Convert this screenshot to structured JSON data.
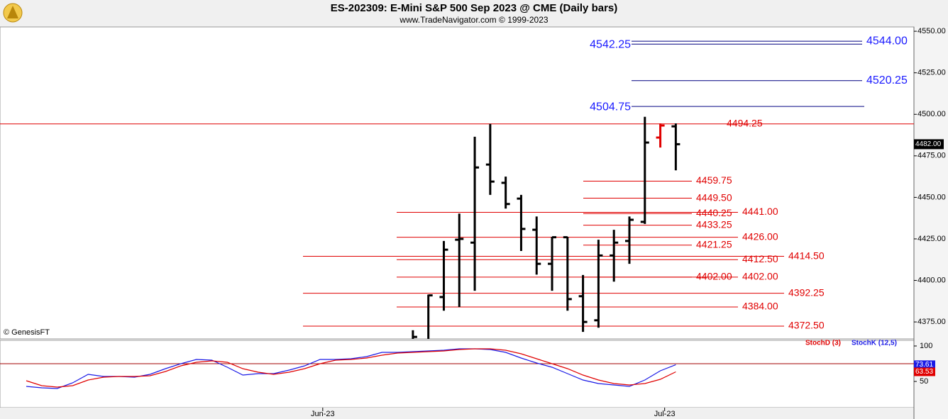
{
  "header": {
    "title": "ES-202309:  E-Mini S&P 500 Sep 2023 @ CME  (Daily bars)",
    "subtitle": "www.TradeNavigator.com © 1999-2023",
    "credit": "© GenesisFT"
  },
  "chart_data": [
    {
      "type": "ohlc",
      "x": [
        0,
        1,
        2,
        3,
        4,
        5,
        6,
        7,
        8,
        9,
        10,
        11,
        12,
        13,
        14,
        15,
        16,
        17
      ],
      "open": [
        4362,
        4362,
        4390,
        4424.5,
        4422.75,
        4469.75,
        4458.75,
        4449.25,
        4430.5,
        4410,
        4426,
        4390.5,
        4376,
        4415,
        4423.75,
        4435.25,
        4486,
        4492.75
      ],
      "high": [
        4370,
        4391.5,
        4423.75,
        4440.25,
        4486.5,
        4494.25,
        4462.5,
        4451.5,
        4438.5,
        4426.25,
        4426.25,
        4403.25,
        4424.5,
        4430.5,
        4438.5,
        4498.5,
        4494.5,
        4494.5
      ],
      "low": [
        4355,
        4360,
        4381.75,
        4384,
        4393.75,
        4451.5,
        4443.25,
        4417.75,
        4403.5,
        4393.75,
        4381.75,
        4369,
        4371.5,
        4399.25,
        4410,
        4434,
        4480,
        4466.25
      ],
      "close": [
        4366,
        4391,
        4418.5,
        4425,
        4468,
        4459.5,
        4446,
        4431,
        4410,
        4426,
        4388.75,
        4375,
        4415,
        4422.75,
        4436.5,
        4483,
        4493.25,
        4482
      ],
      "bar_colors": [
        "#000000",
        "#000000",
        "#000000",
        "#000000",
        "#000000",
        "#000000",
        "#000000",
        "#000000",
        "#000000",
        "#000000",
        "#000000",
        "#000000",
        "#000000",
        "#000000",
        "#000000",
        "#000000",
        "#e00000",
        "#000000"
      ],
      "last": {
        "value": 4482,
        "label": "4482.00"
      },
      "xlim": [
        -26.7,
        32.4
      ],
      "ylim": [
        4364.8,
        4552.6
      ],
      "yticks": [
        {
          "value": 4375,
          "label": "4375.00"
        },
        {
          "value": 4400,
          "label": "4400.00"
        },
        {
          "value": 4425,
          "label": "4425.00"
        },
        {
          "value": 4450,
          "label": "4450.00"
        },
        {
          "value": 4475,
          "label": "4475.00"
        },
        {
          "value": 4500,
          "label": "4500.00"
        },
        {
          "value": 4525,
          "label": "4525.00"
        },
        {
          "value": 4550,
          "label": "4550.00"
        }
      ],
      "levels": [
        {
          "value": 4544,
          "label": "4544.00",
          "color": "#1a1aff"
        },
        {
          "value": 4542.25,
          "label": "4542.25",
          "color": "#1a1aff"
        },
        {
          "value": 4520.25,
          "label": "4520.25",
          "color": "#1a1aff"
        },
        {
          "value": 4504.75,
          "label": "4504.75",
          "color": "#1a1aff"
        },
        {
          "value": 4494.25,
          "label": "4494.25",
          "color": "#e00000"
        },
        {
          "value": 4459.75,
          "label": "4459.75",
          "color": "#e00000"
        },
        {
          "value": 4449.5,
          "label": "4449.50",
          "color": "#e00000"
        },
        {
          "value": 4441,
          "label": "4441.00",
          "color": "#e00000"
        },
        {
          "value": 4440.25,
          "label": "4440.25",
          "color": "#e00000"
        },
        {
          "value": 4433.25,
          "label": "4433.25",
          "color": "#e00000"
        },
        {
          "value": 4426,
          "label": "4426.00",
          "color": "#e00000"
        },
        {
          "value": 4421.25,
          "label": "4421.25",
          "color": "#e00000"
        },
        {
          "value": 4414.5,
          "label": "4414.50",
          "color": "#e00000"
        },
        {
          "value": 4412.5,
          "label": "4412.50",
          "color": "#e00000"
        },
        {
          "value": 4402,
          "label": "4402.00",
          "color": "#e00000"
        },
        {
          "value": 4402,
          "label": "4402.00",
          "color": "#e00000"
        },
        {
          "value": 4392.25,
          "label": "4392.25",
          "color": "#e00000"
        },
        {
          "value": 4384,
          "label": "4384.00",
          "color": "#e00000"
        },
        {
          "value": 4372.5,
          "label": "4372.50",
          "color": "#e00000"
        }
      ]
    },
    {
      "type": "line",
      "x": [
        -25,
        -24,
        -23,
        -22,
        -21,
        -20,
        -19,
        -18,
        -17,
        -16,
        -15,
        -14,
        -13,
        -12,
        -11,
        -10,
        -9,
        -8,
        -7,
        -6,
        -5,
        -4,
        -3,
        -2,
        -1,
        0,
        1,
        2,
        3,
        4,
        5,
        6,
        7,
        8,
        9,
        10,
        11,
        12,
        13,
        14,
        15,
        16,
        17
      ],
      "series": [
        {
          "name": "StochK (12,5)",
          "color": "#1a1ae6",
          "values": [
            43,
            41,
            40,
            48,
            60,
            57,
            57,
            56,
            60,
            68,
            75,
            81,
            80,
            70,
            59,
            61,
            61,
            66,
            72,
            81,
            81,
            82,
            85,
            91,
            91,
            92,
            93,
            94,
            96,
            96,
            95,
            91,
            83,
            76,
            70,
            61,
            52,
            47,
            45,
            43,
            52,
            65,
            73.61
          ]
        },
        {
          "name": "StochD (3)",
          "color": "#e00000",
          "values": [
            51,
            44,
            42,
            44,
            52,
            56,
            57,
            57,
            58,
            64,
            72,
            77,
            79,
            77,
            68,
            63,
            60,
            63,
            68,
            75,
            80,
            81,
            83,
            87,
            90,
            91,
            92,
            93,
            95,
            96,
            96,
            94,
            89,
            82,
            75,
            68,
            59,
            52,
            47,
            45,
            47,
            53,
            63.53
          ]
        }
      ],
      "hline": 75,
      "xlim": [
        -26.7,
        32.4
      ],
      "ylim": [
        13,
        108
      ],
      "yticks": [
        50,
        100
      ],
      "xticks": [
        {
          "value": -5.83,
          "label": "Jun-23"
        },
        {
          "value": 16.28,
          "label": "Jul-23"
        }
      ]
    }
  ]
}
